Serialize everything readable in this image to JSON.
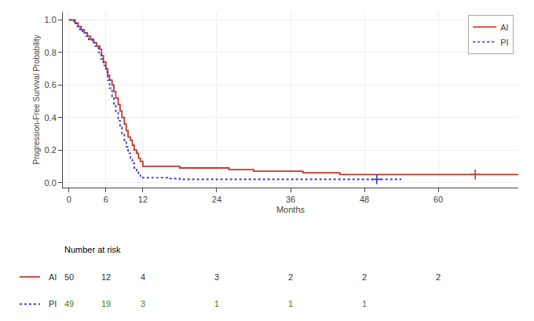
{
  "chart_data": {
    "type": "step",
    "xlabel": "Months",
    "ylabel": "Progression-Free Survival Probability",
    "xlim": [
      -1,
      73
    ],
    "ylim": [
      -0.03,
      1.05
    ],
    "xticks": [
      0,
      6,
      12,
      24,
      36,
      48,
      60
    ],
    "yticks": [
      {
        "value": 0.0,
        "label": "0.0"
      },
      0.2,
      0.4,
      0.6,
      0.8,
      {
        "value": 1.0,
        "label": "1.0"
      }
    ],
    "grid": true,
    "legend": "upper right",
    "series": [
      {
        "name": "AI",
        "color": "#c0392b",
        "line_style": "solid",
        "marker": "cross",
        "x": [
          0,
          1.0,
          1.5,
          2.0,
          2.5,
          3.0,
          3.5,
          4.0,
          4.5,
          5.0,
          5.3,
          5.6,
          6.0,
          6.3,
          6.6,
          7.0,
          7.3,
          7.6,
          8.0,
          8.3,
          8.6,
          9.0,
          9.3,
          9.6,
          10.0,
          10.3,
          10.6,
          11.0,
          11.3,
          11.6,
          12.0,
          13.0,
          14.0,
          16.0,
          18.0,
          20.0,
          22.0,
          24.0,
          26.0,
          28.0,
          30.0,
          32.0,
          34.0,
          36.0,
          38.0,
          40.0,
          44.0,
          48.0,
          52.0,
          56.0,
          60.0,
          66.0,
          73.0
        ],
        "values": [
          1.0,
          0.98,
          0.96,
          0.94,
          0.92,
          0.9,
          0.88,
          0.86,
          0.84,
          0.82,
          0.78,
          0.74,
          0.7,
          0.66,
          0.63,
          0.6,
          0.56,
          0.52,
          0.48,
          0.44,
          0.4,
          0.36,
          0.32,
          0.28,
          0.26,
          0.23,
          0.2,
          0.18,
          0.15,
          0.13,
          0.1,
          0.1,
          0.1,
          0.1,
          0.09,
          0.09,
          0.09,
          0.09,
          0.08,
          0.08,
          0.07,
          0.07,
          0.07,
          0.07,
          0.06,
          0.06,
          0.05,
          0.05,
          0.05,
          0.05,
          0.05,
          0.05,
          0.05
        ],
        "censor_x": [
          66.0
        ],
        "censor_y": [
          0.05
        ]
      },
      {
        "name": "PI",
        "color": "#3a3acd",
        "line_style": "dotted",
        "marker": "cross",
        "x": [
          0,
          0.8,
          1.2,
          1.8,
          2.2,
          2.8,
          3.2,
          3.8,
          4.2,
          4.8,
          5.2,
          5.6,
          6.0,
          6.3,
          6.6,
          7.0,
          7.3,
          7.6,
          8.0,
          8.3,
          8.6,
          9.0,
          9.3,
          9.6,
          10.0,
          10.3,
          10.6,
          11.0,
          11.3,
          11.6,
          12.0,
          14.0,
          16.0,
          18.0,
          20.0,
          22.0,
          24.0,
          28.0,
          32.0,
          36.0,
          40.0,
          44.0,
          48.0,
          50.0,
          54.0
        ],
        "values": [
          1.0,
          0.98,
          0.96,
          0.94,
          0.92,
          0.9,
          0.88,
          0.86,
          0.84,
          0.8,
          0.76,
          0.72,
          0.68,
          0.63,
          0.58,
          0.53,
          0.48,
          0.43,
          0.38,
          0.34,
          0.3,
          0.26,
          0.22,
          0.18,
          0.15,
          0.12,
          0.09,
          0.07,
          0.05,
          0.04,
          0.03,
          0.03,
          0.025,
          0.02,
          0.02,
          0.02,
          0.02,
          0.02,
          0.02,
          0.02,
          0.02,
          0.02,
          0.02,
          0.02,
          0.02
        ],
        "censor_x": [
          50.0
        ],
        "censor_y": [
          0.02
        ]
      }
    ],
    "risk_table": {
      "title": "Number at risk",
      "x": [
        0,
        6,
        12,
        24,
        36,
        48,
        60
      ],
      "rows": [
        {
          "name": "AI",
          "color": "#333333",
          "values": [
            50,
            12,
            4,
            3,
            2,
            2,
            2
          ]
        },
        {
          "name": "PI",
          "color": "#4a7a1e",
          "values": [
            49,
            19,
            3,
            1,
            1,
            1
          ]
        }
      ]
    }
  }
}
